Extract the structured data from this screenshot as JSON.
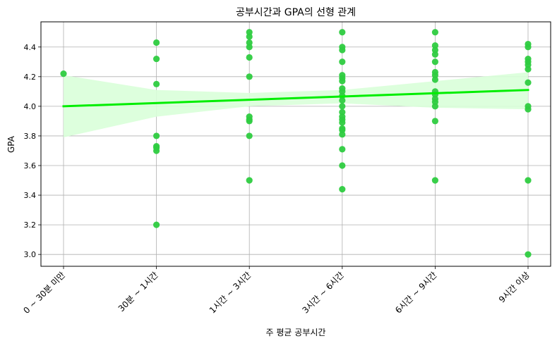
{
  "chart_data": {
    "type": "scatter",
    "title": "공부시간과 GPA의 선형 관계",
    "xlabel": "주 평균 공부시간",
    "ylabel": "GPA",
    "categories": [
      "0 ~ 30분 미만",
      "30분 ~ 1시간",
      "1시간 ~ 3시간",
      "3시간 ~ 6시간",
      "6시간 ~ 9시간",
      "9시간 이상"
    ],
    "ylim": [
      2.92,
      4.57
    ],
    "yticks": [
      "3.0",
      "3.2",
      "3.4",
      "3.6",
      "3.8",
      "4.0",
      "4.2",
      "4.4"
    ],
    "grid": true,
    "colors": {
      "points": "#2ecc40",
      "line": "#00ee00",
      "band": "#d9ffd9"
    },
    "points": [
      [
        0,
        4.22
      ],
      [
        1,
        4.43
      ],
      [
        1,
        4.32
      ],
      [
        1,
        4.15
      ],
      [
        1,
        3.8
      ],
      [
        1,
        3.73
      ],
      [
        1,
        3.72
      ],
      [
        1,
        3.7
      ],
      [
        1,
        3.2
      ],
      [
        2,
        4.5
      ],
      [
        2,
        4.47
      ],
      [
        2,
        4.43
      ],
      [
        2,
        4.4
      ],
      [
        2,
        4.33
      ],
      [
        2,
        4.2
      ],
      [
        2,
        3.93
      ],
      [
        2,
        3.91
      ],
      [
        2,
        3.9
      ],
      [
        2,
        3.8
      ],
      [
        2,
        3.5
      ],
      [
        3,
        4.5
      ],
      [
        3,
        4.4
      ],
      [
        3,
        4.38
      ],
      [
        3,
        4.3
      ],
      [
        3,
        4.21
      ],
      [
        3,
        4.19
      ],
      [
        3,
        4.17
      ],
      [
        3,
        4.12
      ],
      [
        3,
        4.1
      ],
      [
        3,
        4.07
      ],
      [
        3,
        4.04
      ],
      [
        3,
        4.0
      ],
      [
        3,
        3.96
      ],
      [
        3,
        3.93
      ],
      [
        3,
        3.91
      ],
      [
        3,
        3.89
      ],
      [
        3,
        3.85
      ],
      [
        3,
        3.84
      ],
      [
        3,
        3.81
      ],
      [
        3,
        3.71
      ],
      [
        3,
        3.6
      ],
      [
        3,
        3.44
      ],
      [
        4,
        4.5
      ],
      [
        4,
        4.41
      ],
      [
        4,
        4.38
      ],
      [
        4,
        4.35
      ],
      [
        4,
        4.3
      ],
      [
        4,
        4.23
      ],
      [
        4,
        4.21
      ],
      [
        4,
        4.18
      ],
      [
        4,
        4.1
      ],
      [
        4,
        4.08
      ],
      [
        4,
        4.05
      ],
      [
        4,
        4.03
      ],
      [
        4,
        4.0
      ],
      [
        4,
        3.9
      ],
      [
        4,
        3.5
      ],
      [
        5,
        4.42
      ],
      [
        5,
        4.4
      ],
      [
        5,
        4.32
      ],
      [
        5,
        4.3
      ],
      [
        5,
        4.28
      ],
      [
        5,
        4.25
      ],
      [
        5,
        4.16
      ],
      [
        5,
        4.0
      ],
      [
        5,
        3.98
      ],
      [
        5,
        3.5
      ],
      [
        5,
        3.0
      ]
    ],
    "regression": {
      "start": [
        0,
        4.0
      ],
      "end": [
        5,
        4.11
      ]
    },
    "confidence_band": {
      "x": [
        0,
        1,
        2,
        3,
        4,
        5
      ],
      "lower": [
        3.79,
        3.93,
        4.0,
        4.02,
        3.99,
        3.98
      ],
      "upper": [
        4.21,
        4.11,
        4.09,
        4.11,
        4.17,
        4.23
      ]
    }
  }
}
